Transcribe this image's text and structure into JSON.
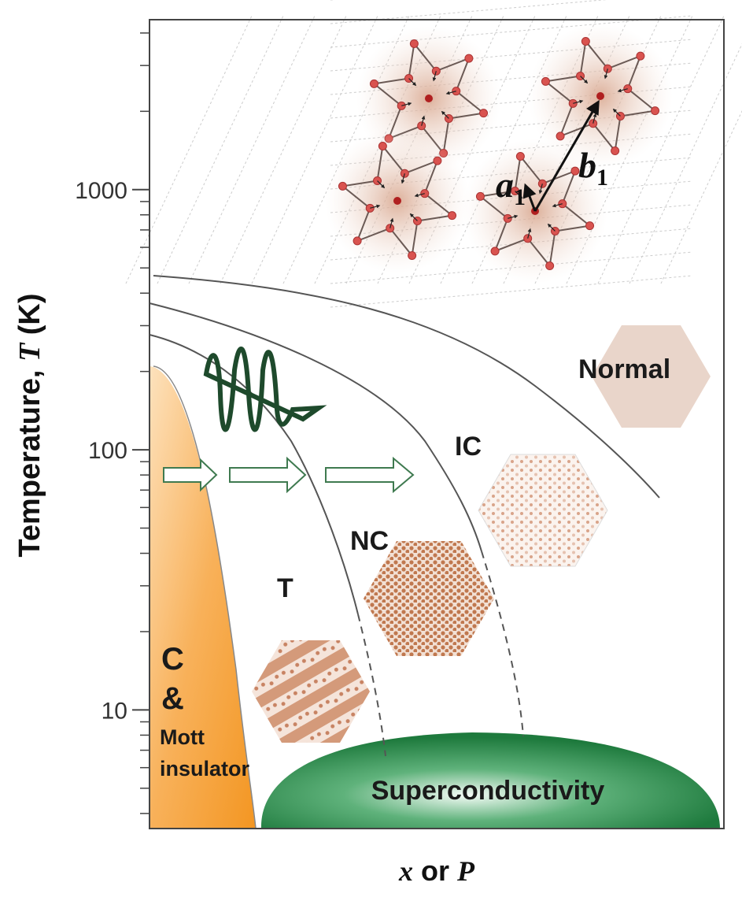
{
  "chart_data": {
    "type": "phase-diagram",
    "ylabel": [
      "Temperature, ",
      "T",
      " (K)"
    ],
    "xlabel": [
      "x",
      " or ",
      "P"
    ],
    "yscale": "log",
    "ylim": [
      3.5,
      4500
    ],
    "yticks": [
      10,
      100,
      1000
    ],
    "yminorticks": [
      4,
      5,
      6,
      7,
      8,
      9,
      20,
      30,
      40,
      50,
      60,
      70,
      80,
      90,
      200,
      300,
      400,
      500,
      600,
      700,
      800,
      900,
      2000,
      3000,
      4000
    ],
    "regions": {
      "normal": "Normal",
      "ic": "IC",
      "nc": "NC",
      "t": "T",
      "c": [
        "C",
        "&",
        "Mott",
        "insulator"
      ],
      "sc": "Superconductivity"
    },
    "lattice": {
      "a": [
        "a",
        "1"
      ],
      "b": [
        "b",
        "1"
      ]
    }
  }
}
